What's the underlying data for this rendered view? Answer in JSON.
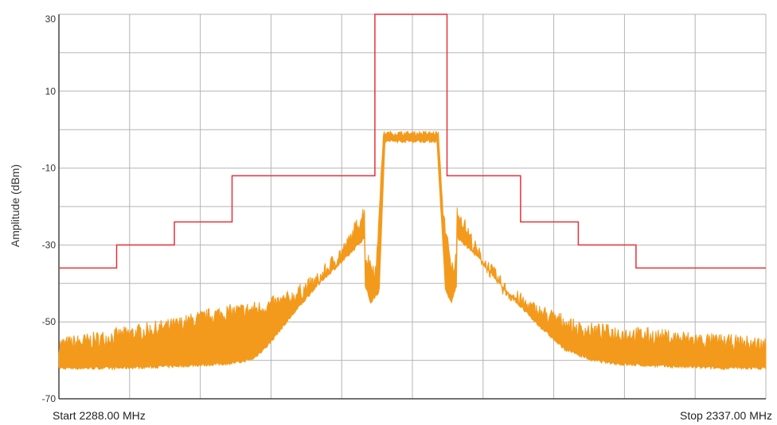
{
  "chart_data": {
    "type": "line",
    "ylabel": "Amplitude (dBm)",
    "x_start_label": "Start 2288.00 MHz",
    "x_stop_label": "Stop 2337.00 MHz",
    "xlim": [
      2288.0,
      2337.0
    ],
    "ylim": [
      -70,
      30
    ],
    "y_ticks": [
      30,
      10,
      -10,
      -30,
      -50,
      -70
    ],
    "x_grid_divisions": 10,
    "y_grid_step": 10,
    "grid": true,
    "colors": {
      "mask": "#e8303a",
      "spectrum": "#f39a1c",
      "grid": "#b4b4b4",
      "axis": "#444444"
    },
    "series": [
      {
        "role": "spectrum-mask",
        "x": [
          2288.0,
          2292.0,
          2292.0,
          2296.0,
          2296.0,
          2300.0,
          2300.0,
          2309.9,
          2309.9,
          2314.9,
          2314.9,
          2320.0,
          2320.0,
          2324.0,
          2324.0,
          2328.0,
          2328.0,
          2337.0
        ],
        "y": [
          -36,
          -36,
          -30,
          -30,
          -24,
          -24,
          -12,
          -12,
          30,
          30,
          -12,
          -12,
          -24,
          -24,
          -30,
          -30,
          -36,
          -36
        ]
      },
      {
        "role": "spectrum-trace-peak",
        "x": [
          2288.0,
          2290.0,
          2293.0,
          2296.0,
          2299.0,
          2301.0,
          2302.0,
          2304.0,
          2306.0,
          2308.0,
          2309.2,
          2309.2,
          2310.0,
          2310.2,
          2310.5,
          2312.0,
          2314.0,
          2314.3,
          2314.6,
          2315.2,
          2315.6,
          2315.6,
          2317.0,
          2319.0,
          2321.0,
          2323.0,
          2324.0,
          2327.0,
          2330.0,
          2333.0,
          2337.0
        ],
        "y": [
          -56,
          -55,
          -53,
          -51,
          -48,
          -47,
          -46.5,
          -44,
          -39,
          -30,
          -21,
          -33,
          -37,
          -20,
          -1,
          -1,
          -1,
          -1,
          -20,
          -37,
          -33,
          -21,
          -32,
          -42,
          -47,
          -50,
          -52,
          -53,
          -54,
          -55,
          -56
        ]
      },
      {
        "role": "spectrum-trace-floor",
        "x": [
          2288.0,
          2292.0,
          2296.0,
          2299.0,
          2300.5,
          2301.5,
          2302.5,
          2304.0,
          2306.0,
          2308.0,
          2309.2,
          2309.2,
          2309.6,
          2310.2,
          2310.6,
          2312.0,
          2314.0,
          2314.2,
          2314.8,
          2315.2,
          2315.6,
          2315.6,
          2317.0,
          2319.0,
          2321.0,
          2323.0,
          2325.0,
          2327.0,
          2330.0,
          2334.0,
          2337.0
        ],
        "y": [
          -62,
          -62,
          -61.5,
          -61,
          -60.5,
          -59.5,
          -56,
          -49,
          -40,
          -33,
          -28,
          -40,
          -45,
          -42,
          -3,
          -3,
          -3,
          -3,
          -42,
          -45,
          -40,
          -28,
          -33,
          -42,
          -50,
          -57,
          -60,
          -61,
          -61.5,
          -62,
          -62
        ]
      }
    ]
  }
}
